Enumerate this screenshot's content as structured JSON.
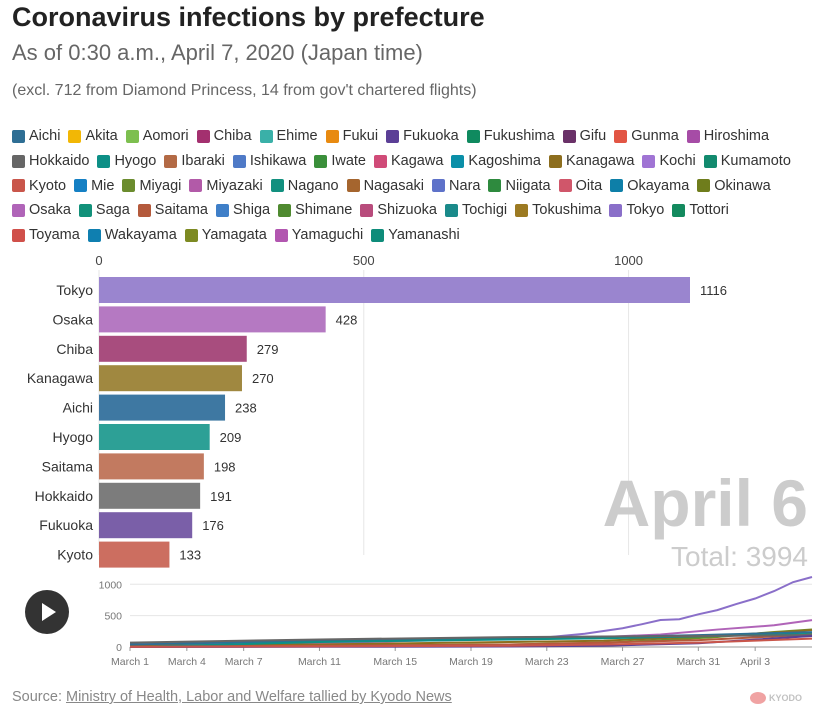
{
  "header": {
    "title": "Coronavirus infections by prefecture",
    "subtitle": "As of 0:30 a.m., April 7, 2020 (Japan time)",
    "note": "(excl. 712 from Diamond Princess, 14 from gov't chartered flights)"
  },
  "legend": [
    {
      "label": "Aichi",
      "color": "#2e6e94"
    },
    {
      "label": "Akita",
      "color": "#f2b705"
    },
    {
      "label": "Aomori",
      "color": "#7dbf4f"
    },
    {
      "label": "Chiba",
      "color": "#a3306f"
    },
    {
      "label": "Ehime",
      "color": "#3ab0a8"
    },
    {
      "label": "Fukui",
      "color": "#e88a10"
    },
    {
      "label": "Fukuoka",
      "color": "#5b3f96"
    },
    {
      "label": "Fukushima",
      "color": "#0f8a5f"
    },
    {
      "label": "Gifu",
      "color": "#6a3168"
    },
    {
      "label": "Gunma",
      "color": "#e25544"
    },
    {
      "label": "Hiroshima",
      "color": "#a64ca6"
    },
    {
      "label": "Hokkaido",
      "color": "#666666"
    },
    {
      "label": "Hyogo",
      "color": "#0d8f86"
    },
    {
      "label": "Ibaraki",
      "color": "#b36a45"
    },
    {
      "label": "Ishikawa",
      "color": "#4f7ac7"
    },
    {
      "label": "Iwate",
      "color": "#3a8f3a"
    },
    {
      "label": "Kagawa",
      "color": "#d04b78"
    },
    {
      "label": "Kagoshima",
      "color": "#0a8fa8"
    },
    {
      "label": "Kanagawa",
      "color": "#8d6e1e"
    },
    {
      "label": "Kochi",
      "color": "#a074d4"
    },
    {
      "label": "Kumamoto",
      "color": "#128a6e"
    },
    {
      "label": "Kyoto",
      "color": "#c9564b"
    },
    {
      "label": "Mie",
      "color": "#1580c4"
    },
    {
      "label": "Miyagi",
      "color": "#6b8c2e"
    },
    {
      "label": "Miyazaki",
      "color": "#b25aa8"
    },
    {
      "label": "Nagano",
      "color": "#12907f"
    },
    {
      "label": "Nagasaki",
      "color": "#a5652e"
    },
    {
      "label": "Nara",
      "color": "#5e72c9"
    },
    {
      "label": "Niigata",
      "color": "#2e8a3e"
    },
    {
      "label": "Oita",
      "color": "#d0566a"
    },
    {
      "label": "Okayama",
      "color": "#0e7fa8"
    },
    {
      "label": "Okinawa",
      "color": "#6f7d1c"
    },
    {
      "label": "Osaka",
      "color": "#b064b8"
    },
    {
      "label": "Saga",
      "color": "#12917a"
    },
    {
      "label": "Saitama",
      "color": "#b45a3c"
    },
    {
      "label": "Shiga",
      "color": "#3f7fc8"
    },
    {
      "label": "Shimane",
      "color": "#4f8a30"
    },
    {
      "label": "Shizuoka",
      "color": "#b84c7c"
    },
    {
      "label": "Tochigi",
      "color": "#1a8a8a"
    },
    {
      "label": "Tokushima",
      "color": "#9c7a22"
    },
    {
      "label": "Tokyo",
      "color": "#8a6fc9"
    },
    {
      "label": "Tottori",
      "color": "#138a5e"
    },
    {
      "label": "Toyama",
      "color": "#d0504a"
    },
    {
      "label": "Wakayama",
      "color": "#0f7fb0"
    },
    {
      "label": "Yamagata",
      "color": "#7d8a22"
    },
    {
      "label": "Yamaguchi",
      "color": "#b256b0"
    },
    {
      "label": "Yamanashi",
      "color": "#0e8c7a"
    }
  ],
  "chart_data": [
    {
      "type": "bar",
      "orientation": "horizontal",
      "xlim": [
        0,
        1116
      ],
      "ticks": [
        0,
        500,
        1000
      ],
      "tick_labels": [
        "0",
        "500",
        "1000"
      ],
      "grid": true,
      "categories": [
        "Tokyo",
        "Osaka",
        "Chiba",
        "Kanagawa",
        "Aichi",
        "Hyogo",
        "Saitama",
        "Hokkaido",
        "Fukuoka",
        "Kyoto"
      ],
      "values": [
        1116,
        428,
        279,
        270,
        238,
        209,
        198,
        191,
        176,
        133
      ],
      "value_labels": [
        "1116",
        "428",
        "279",
        "270",
        "238",
        "209",
        "198",
        "191",
        "176",
        "133"
      ],
      "colors": [
        "#9a85cf",
        "#b579c2",
        "#a84d7e",
        "#a08840",
        "#3e78a2",
        "#2da096",
        "#c27a60",
        "#7c7c7c",
        "#7a5fa8",
        "#cc6e60"
      ],
      "date_label": "April 6",
      "total_label": "Total: 3994"
    },
    {
      "type": "line",
      "x_tick_labels": [
        "March 1",
        "March 4",
        "March 7",
        "March 11",
        "March 15",
        "March 19",
        "March 23",
        "March 27",
        "March 31",
        "April 3"
      ],
      "x_tick_days": [
        0,
        3,
        6,
        10,
        14,
        18,
        22,
        26,
        30,
        33
      ],
      "y_ticks": [
        0,
        500,
        1000
      ],
      "y_tick_labels": [
        "0",
        "500",
        "1000"
      ],
      "ylim": [
        0,
        1116
      ],
      "series": [
        {
          "name": "Tokyo",
          "color": "#8a6fc9",
          "days": [
            0,
            5,
            10,
            15,
            20,
            22,
            24,
            26,
            27,
            28,
            29,
            30,
            31,
            32,
            33,
            34,
            35,
            36
          ],
          "values": [
            41,
            62,
            79,
            117,
            138,
            154,
            212,
            299,
            362,
            430,
            443,
            521,
            588,
            684,
            773,
            891,
            1034,
            1116
          ]
        },
        {
          "name": "Osaka",
          "color": "#b064b8",
          "days": [
            0,
            5,
            10,
            15,
            20,
            25,
            28,
            31,
            34,
            36
          ],
          "values": [
            2,
            25,
            60,
            100,
            128,
            160,
            200,
            278,
            346,
            428
          ]
        },
        {
          "name": "Chiba",
          "color": "#6a8f2a",
          "days": [
            0,
            10,
            20,
            25,
            28,
            31,
            34,
            36
          ],
          "values": [
            10,
            20,
            40,
            68,
            110,
            160,
            240,
            279
          ]
        },
        {
          "name": "Kanagawa",
          "color": "#8d6e1e",
          "days": [
            0,
            10,
            20,
            25,
            28,
            31,
            34,
            36
          ],
          "values": [
            20,
            40,
            80,
            100,
            140,
            180,
            230,
            270
          ]
        },
        {
          "name": "Aichi",
          "color": "#2e6e94",
          "days": [
            0,
            10,
            20,
            25,
            30,
            36
          ],
          "values": [
            40,
            100,
            140,
            160,
            190,
            238
          ]
        },
        {
          "name": "Hyogo",
          "color": "#0d8f86",
          "days": [
            0,
            10,
            20,
            25,
            30,
            36
          ],
          "values": [
            0,
            80,
            120,
            140,
            170,
            209
          ]
        },
        {
          "name": "Saitama",
          "color": "#b45a3c",
          "days": [
            0,
            10,
            20,
            25,
            30,
            36
          ],
          "values": [
            3,
            20,
            40,
            70,
            110,
            198
          ]
        },
        {
          "name": "Hokkaido",
          "color": "#666666",
          "days": [
            0,
            10,
            20,
            25,
            30,
            36
          ],
          "values": [
            70,
            120,
            158,
            168,
            175,
            191
          ]
        },
        {
          "name": "Fukuoka",
          "color": "#5b3f96",
          "days": [
            0,
            10,
            20,
            25,
            30,
            36
          ],
          "values": [
            0,
            3,
            8,
            20,
            60,
            176
          ]
        },
        {
          "name": "Kyoto",
          "color": "#c9564b",
          "days": [
            0,
            10,
            20,
            25,
            30,
            36
          ],
          "values": [
            2,
            10,
            20,
            40,
            70,
            133
          ]
        }
      ]
    }
  ],
  "footer": {
    "source_prefix": "Source: ",
    "source_link": "Ministry of Health, Labor and Welfare tallied by Kyodo News",
    "logo_text": "KYODO"
  }
}
